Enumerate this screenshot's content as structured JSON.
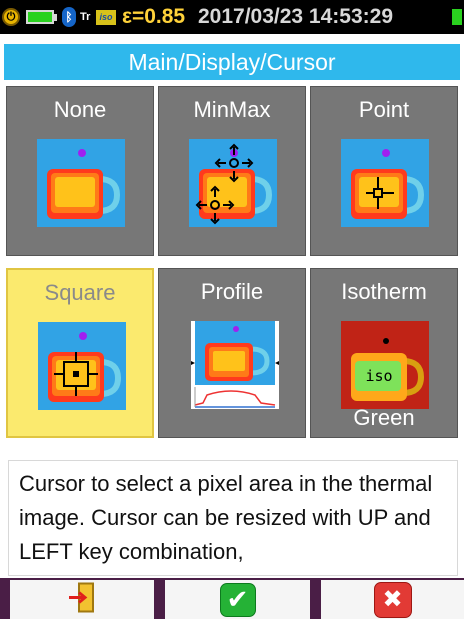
{
  "status_bar": {
    "transmissivity_label": "Tr",
    "emissivity": "ε=0.85",
    "datetime": "2017/03/23 14:53:29",
    "icons": [
      "power-icon",
      "battery-icon",
      "bluetooth-icon",
      "transmissivity-icon",
      "iso-icon",
      "status-icon"
    ]
  },
  "title": "Main/Display/Cursor",
  "tiles": [
    {
      "label": "None"
    },
    {
      "label": "MinMax"
    },
    {
      "label": "Point"
    },
    {
      "label": "Square",
      "selected": true
    },
    {
      "label": "Profile"
    },
    {
      "label": "Isotherm",
      "sublabel": "Green",
      "iso_text": "iso"
    }
  ],
  "description": "Cursor to select a pixel area in the thermal image. Cursor can be resized with UP and LEFT key combination,",
  "buttons": {
    "exit_icon": "exit-icon",
    "ok_icon": "check-icon",
    "cancel_icon": "close-icon"
  },
  "colors": {
    "title_bar": "#2fb8ec",
    "selected_tile": "#fbea6e",
    "tile": "#777777",
    "bottom_bar": "#4a1e46"
  }
}
